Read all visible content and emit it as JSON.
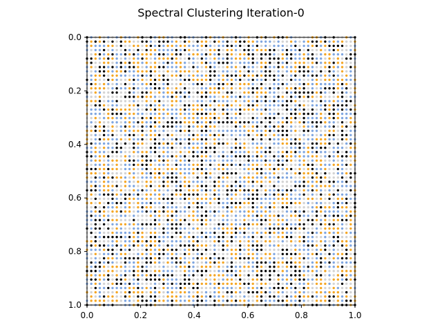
{
  "chart_data": {
    "type": "scatter",
    "title": "Spectral Clustering Iteration-0",
    "xlabel": "",
    "ylabel": "",
    "xlim": [
      0.0,
      1.0
    ],
    "ylim": [
      1.0,
      0.0
    ],
    "y_inverted": true,
    "x_ticks": [
      "0.0",
      "0.2",
      "0.4",
      "0.6",
      "0.8",
      "1.0"
    ],
    "y_ticks": [
      "0.0",
      "0.2",
      "0.4",
      "0.6",
      "0.8",
      "1.0"
    ],
    "grid": false,
    "legend": "none",
    "grid_points": {
      "description": "uniform lattice of points covering the unit square, each point colored by cluster label (random initial assignment)",
      "count_per_axis": 64,
      "x_range": [
        0.0,
        1.0
      ],
      "y_range": [
        0.0,
        1.0
      ]
    },
    "clusters": [
      {
        "label": "0",
        "color": "#000000"
      },
      {
        "label": "1",
        "color": "#f5a623"
      },
      {
        "label": "2",
        "color": "#7fa6e0"
      },
      {
        "label": "3",
        "color": "#d3d3d3"
      }
    ],
    "assignment": "random",
    "random_seed": 12345
  }
}
